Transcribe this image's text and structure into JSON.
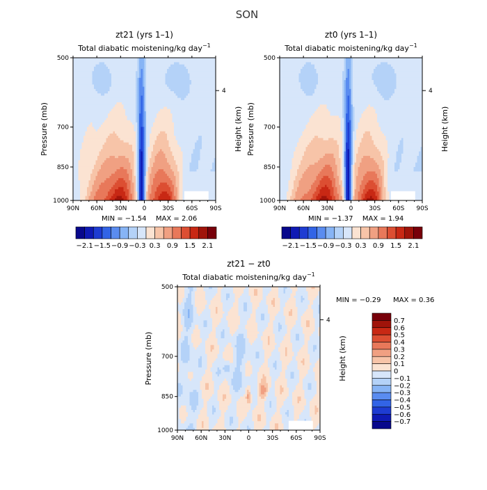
{
  "title": "SON",
  "chart_data": [
    {
      "type": "heatmap",
      "title": "zt21 (yrs 1–1)",
      "subtitle": "Total diabatic moistening/kg day",
      "subtitle_sup": "−1",
      "xlabel": "",
      "ylabel": "Pressure (mb)",
      "y2label": "Height (km)",
      "x_ticks": [
        "90N",
        "60N",
        "30N",
        "0",
        "30S",
        "60S",
        "90S"
      ],
      "y_ticks": [
        "500",
        "700",
        "850",
        "1000"
      ],
      "y2_ticks": [
        "4"
      ],
      "min_text": "MIN = −1.54",
      "max_text": "MAX = 2.06",
      "min": -1.54,
      "max": 2.06,
      "colorbar_ticks": [
        "−2.1",
        "−1.5",
        "−0.9",
        "−0.3",
        "0.3",
        "0.9",
        "1.5",
        "2.1"
      ]
    },
    {
      "type": "heatmap",
      "title": "zt0 (yrs 1–1)",
      "subtitle": "Total diabatic moistening/kg day",
      "subtitle_sup": "−1",
      "xlabel": "",
      "ylabel": "Pressure (mb)",
      "y2label": "Height (km)",
      "x_ticks": [
        "90N",
        "60N",
        "30N",
        "0",
        "30S",
        "60S",
        "90S"
      ],
      "y_ticks": [
        "500",
        "700",
        "850",
        "1000"
      ],
      "y2_ticks": [
        "4"
      ],
      "min_text": "MIN = −1.37",
      "max_text": "MAX = 1.94",
      "min": -1.37,
      "max": 1.94,
      "colorbar_ticks": [
        "−2.1",
        "−1.5",
        "−0.9",
        "−0.3",
        "0.3",
        "0.9",
        "1.5",
        "2.1"
      ]
    },
    {
      "type": "heatmap",
      "title": "zt21 − zt0",
      "subtitle": "Total diabatic moistening/kg day",
      "subtitle_sup": "−1",
      "xlabel": "",
      "ylabel": "Pressure (mb)",
      "y2label": "Height (km)",
      "x_ticks": [
        "90N",
        "60N",
        "30N",
        "0",
        "30S",
        "60S",
        "90S"
      ],
      "y_ticks": [
        "500",
        "700",
        "850",
        "1000"
      ],
      "y2_ticks": [
        "4"
      ],
      "min_text": "MIN = −0.29",
      "max_text": "MAX = 0.36",
      "min": -0.29,
      "max": 0.36,
      "colorbar_ticks": [
        "0.7",
        "0.6",
        "0.5",
        "0.4",
        "0.3",
        "0.2",
        "0.1",
        "0",
        "−0.1",
        "−0.2",
        "−0.3",
        "−0.4",
        "−0.5",
        "−0.6",
        "−0.7"
      ]
    }
  ],
  "colors": {
    "scale_main": [
      "#08088c",
      "#0f1ab4",
      "#1e3cd2",
      "#3264e6",
      "#5a8cf0",
      "#87b4f5",
      "#b4d2f8",
      "#d7e6fa",
      "#fbe3d2",
      "#f7c4a8",
      "#f0a082",
      "#e8785a",
      "#dc4e32",
      "#c82814",
      "#a0140a",
      "#78000a"
    ],
    "scale_diff": [
      "#78000a",
      "#a0140a",
      "#c82814",
      "#dc4e32",
      "#e8785a",
      "#f0a082",
      "#f7c4a8",
      "#fbe3d2",
      "#d7e6fa",
      "#b4d2f8",
      "#87b4f5",
      "#5a8cf0",
      "#3264e6",
      "#1e3cd2",
      "#0f1ab4",
      "#08088c"
    ]
  }
}
